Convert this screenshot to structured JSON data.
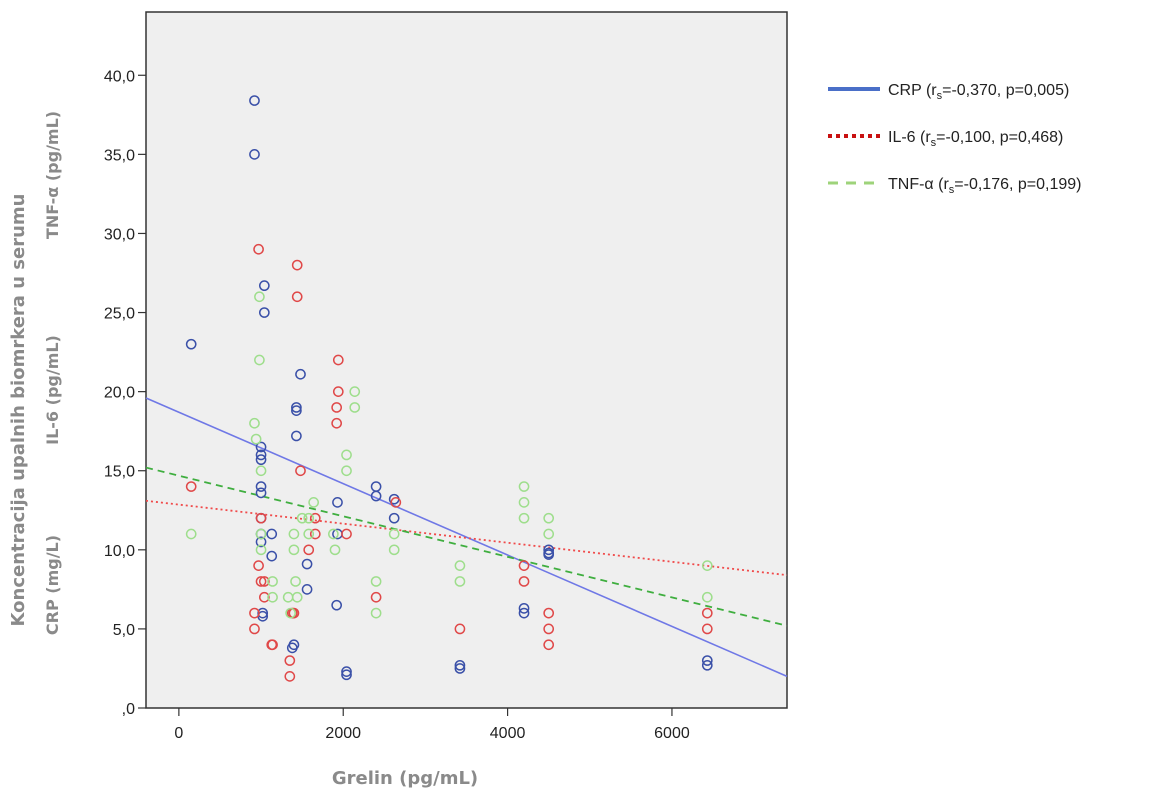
{
  "chart_data": {
    "type": "scatter",
    "xlabel": "Grelin (pg/mL)",
    "ylabel_lines": [
      "Koncentracija upalnih biomrkera u serumu",
      "TNF-α (pg/mL)",
      "IL-6 (pg/mL)",
      "CRP (mg/L)"
    ],
    "xlim": [
      -400,
      7400
    ],
    "ylim": [
      0,
      44
    ],
    "xticks": [
      0,
      2000,
      4000,
      6000
    ],
    "xtick_labels": [
      "0",
      "2000",
      "4000",
      "6000"
    ],
    "yticks": [
      0,
      5,
      10,
      15,
      20,
      25,
      30,
      35,
      40
    ],
    "ytick_labels": [
      ",0",
      "5,0",
      "10,0",
      "15,0",
      "20,0",
      "25,0",
      "30,0",
      "35,0",
      "40,0"
    ],
    "grid": false,
    "legend_position": "right",
    "series": [
      {
        "name": "CRP",
        "legend_parts": [
          "CRP (r",
          "s",
          "=-0,370, p=0,005)"
        ],
        "color": "#3a50a8",
        "line_color": "#6f78e6",
        "line_style": "solid",
        "fit": {
          "x": [
            -400,
            7400
          ],
          "y": [
            19.6,
            2.0
          ]
        },
        "points": [
          [
            150,
            23
          ],
          [
            920,
            38.4
          ],
          [
            920,
            35
          ],
          [
            1000,
            16.5
          ],
          [
            1000,
            16
          ],
          [
            1000,
            15.7
          ],
          [
            1000,
            14
          ],
          [
            1000,
            13.6
          ],
          [
            1000,
            12
          ],
          [
            1000,
            11
          ],
          [
            1000,
            10.5
          ],
          [
            1020,
            6
          ],
          [
            1020,
            5.8
          ],
          [
            1040,
            26.7
          ],
          [
            1040,
            25
          ],
          [
            1130,
            11
          ],
          [
            1130,
            9.6
          ],
          [
            1400,
            4
          ],
          [
            1380,
            3.8
          ],
          [
            1430,
            19
          ],
          [
            1430,
            18.8
          ],
          [
            1430,
            17.2
          ],
          [
            1480,
            21.1
          ],
          [
            1560,
            7.5
          ],
          [
            1560,
            9.1
          ],
          [
            1920,
            6.5
          ],
          [
            1930,
            13
          ],
          [
            1930,
            11
          ],
          [
            2040,
            2.3
          ],
          [
            2040,
            2.1
          ],
          [
            2400,
            14
          ],
          [
            2400,
            13.4
          ],
          [
            2620,
            13.2
          ],
          [
            2620,
            12
          ],
          [
            3420,
            2.7
          ],
          [
            3420,
            2.5
          ],
          [
            4200,
            6.3
          ],
          [
            4200,
            6
          ],
          [
            4500,
            10
          ],
          [
            4500,
            9.8
          ],
          [
            4500,
            9.7
          ],
          [
            6430,
            3
          ],
          [
            6430,
            2.7
          ]
        ]
      },
      {
        "name": "IL-6",
        "legend_parts": [
          "IL-6 (r",
          "s",
          "=-0,100, p=0,468)"
        ],
        "color": "#e04848",
        "line_color": "#f04a4a",
        "line_style": "dotted",
        "fit": {
          "x": [
            -400,
            7400
          ],
          "y": [
            13.1,
            8.4
          ]
        },
        "points": [
          [
            150,
            14
          ],
          [
            920,
            6
          ],
          [
            920,
            5
          ],
          [
            970,
            29
          ],
          [
            970,
            9
          ],
          [
            1000,
            12
          ],
          [
            1000,
            8
          ],
          [
            1040,
            7
          ],
          [
            1040,
            8
          ],
          [
            1140,
            4
          ],
          [
            1130,
            4
          ],
          [
            1350,
            3
          ],
          [
            1350,
            2
          ],
          [
            1380,
            6
          ],
          [
            1400,
            6
          ],
          [
            1440,
            28
          ],
          [
            1440,
            26
          ],
          [
            1480,
            15
          ],
          [
            1580,
            10
          ],
          [
            1660,
            12
          ],
          [
            1660,
            11
          ],
          [
            1920,
            18
          ],
          [
            1920,
            19
          ],
          [
            1940,
            20
          ],
          [
            1940,
            22
          ],
          [
            2040,
            11
          ],
          [
            2400,
            7
          ],
          [
            2640,
            13
          ],
          [
            3420,
            5
          ],
          [
            4200,
            9
          ],
          [
            4200,
            8
          ],
          [
            4500,
            6
          ],
          [
            4500,
            5
          ],
          [
            4500,
            4
          ],
          [
            6430,
            6
          ],
          [
            6430,
            5
          ]
        ]
      },
      {
        "name": "TNF-α",
        "legend_parts": [
          "TNF-α (r",
          "s",
          "=-0,176, p=0,199)"
        ],
        "color": "#9ede8c",
        "line_color": "#3fae3f",
        "line_style": "dashed",
        "fit": {
          "x": [
            -400,
            7400
          ],
          "y": [
            15.2,
            5.2
          ]
        },
        "points": [
          [
            150,
            11
          ],
          [
            920,
            18
          ],
          [
            940,
            17
          ],
          [
            980,
            26
          ],
          [
            980,
            22
          ],
          [
            1000,
            15
          ],
          [
            1000,
            11
          ],
          [
            1000,
            10
          ],
          [
            1140,
            8
          ],
          [
            1140,
            7
          ],
          [
            1330,
            7
          ],
          [
            1360,
            6
          ],
          [
            1400,
            11
          ],
          [
            1400,
            10
          ],
          [
            1420,
            8
          ],
          [
            1440,
            7
          ],
          [
            1500,
            12
          ],
          [
            1580,
            12
          ],
          [
            1580,
            11
          ],
          [
            1640,
            13
          ],
          [
            1880,
            11
          ],
          [
            1900,
            10
          ],
          [
            2040,
            16
          ],
          [
            2040,
            15
          ],
          [
            2140,
            20
          ],
          [
            2140,
            19
          ],
          [
            2400,
            8
          ],
          [
            2400,
            6
          ],
          [
            2620,
            11
          ],
          [
            2620,
            10
          ],
          [
            3420,
            9
          ],
          [
            3420,
            8
          ],
          [
            4200,
            14
          ],
          [
            4200,
            13
          ],
          [
            4200,
            12
          ],
          [
            4500,
            12
          ],
          [
            4500,
            11
          ],
          [
            6430,
            9
          ],
          [
            6430,
            7
          ]
        ]
      }
    ]
  }
}
